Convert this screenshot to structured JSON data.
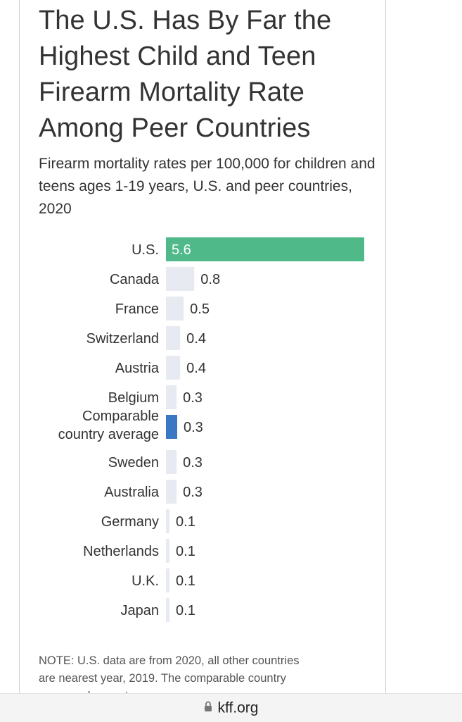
{
  "page": {
    "title": "The U.S. Has By Far the Highest Child and Teen Firearm Mortality Rate Among Peer Countries",
    "subtitle": "Firearm mortality rates per 100,000 for children and teens ages 1-19 years, U.S. and peer countries, 2020",
    "note": "NOTE: U.S. data are from 2020, all other countries are nearest year, 2019. The comparable country average does not"
  },
  "browser": {
    "domain": "kff.org",
    "lock_icon": "lock-icon"
  },
  "colors": {
    "us_bar": "#4fb98a",
    "average_bar": "#3a78c4",
    "other_bar": "#e7ebf1"
  },
  "chart_data": {
    "type": "bar",
    "orientation": "horizontal",
    "title": "The U.S. Has By Far the Highest Child and Teen Firearm Mortality Rate Among Peer Countries",
    "subtitle": "Firearm mortality rates per 100,000 for children and teens ages 1-19 years, U.S. and peer countries, 2020",
    "categories": [
      "U.S.",
      "Canada",
      "France",
      "Switzerland",
      "Austria",
      "Belgium",
      "Comparable country average",
      "Sweden",
      "Australia",
      "Germany",
      "Netherlands",
      "U.K.",
      "Japan"
    ],
    "values": [
      5.6,
      0.8,
      0.5,
      0.4,
      0.4,
      0.3,
      0.3,
      0.3,
      0.3,
      0.1,
      0.1,
      0.1,
      0.1
    ],
    "value_labels": [
      "5.6",
      "0.8",
      "0.5",
      "0.4",
      "0.4",
      "0.3",
      "0.3",
      "0.3",
      "0.3",
      "0.1",
      "0.1",
      "0.1",
      "0.1"
    ],
    "highlight": {
      "U.S.": "us",
      "Comparable country average": "average"
    },
    "xlim": [
      0,
      5.6
    ],
    "grid": false,
    "legend": "none"
  }
}
